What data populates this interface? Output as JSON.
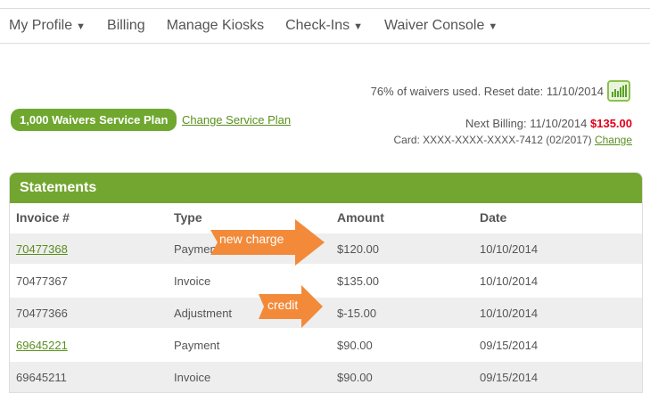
{
  "nav": [
    {
      "label": "My Profile",
      "dropdown": true
    },
    {
      "label": "Billing",
      "dropdown": false
    },
    {
      "label": "Manage Kiosks",
      "dropdown": false
    },
    {
      "label": "Check-Ins",
      "dropdown": true
    },
    {
      "label": "Waiver Console",
      "dropdown": true
    }
  ],
  "usage": {
    "text": "76% of waivers used. Reset date: 11/10/2014",
    "percent": 76,
    "icon": "bar-chart-icon"
  },
  "plan": {
    "label": "1,000 Waivers Service Plan",
    "change_link": "Change Service Plan"
  },
  "billing": {
    "next_label": "Next Billing: 11/10/2014",
    "amount": "$135.00",
    "card": "Card: XXXX-XXXX-XXXX-7412 (02/2017)",
    "change": "Change",
    "amount_color": "#e0001b"
  },
  "statements": {
    "title": "Statements",
    "columns": [
      "Invoice #",
      "Type",
      "Amount",
      "Date"
    ],
    "rows": [
      {
        "invoice": "70477368",
        "link": true,
        "type": "Payment",
        "amount": "$120.00",
        "date": "10/10/2014"
      },
      {
        "invoice": "70477367",
        "link": false,
        "type": "Invoice",
        "amount": "$135.00",
        "date": "10/10/2014"
      },
      {
        "invoice": "70477366",
        "link": false,
        "type": "Adjustment",
        "amount": "$-15.00",
        "date": "10/10/2014"
      },
      {
        "invoice": "69645221",
        "link": true,
        "type": "Payment",
        "amount": "$90.00",
        "date": "09/15/2014"
      },
      {
        "invoice": "69645211",
        "link": false,
        "type": "Invoice",
        "amount": "$90.00",
        "date": "09/15/2014"
      }
    ]
  },
  "annotations": {
    "new_charge": "new charge",
    "credit": "credit",
    "color": "#f28a3a"
  }
}
